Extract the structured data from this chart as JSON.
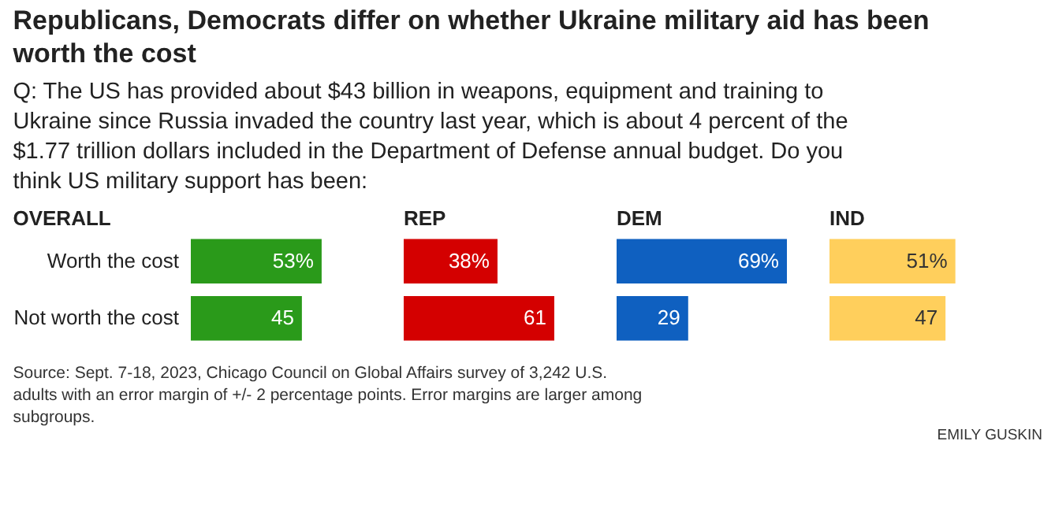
{
  "chart_data": [
    {
      "type": "bar",
      "orientation": "horizontal",
      "title": "OVERALL",
      "categories": [
        "Worth the cost",
        "Not worth the cost"
      ],
      "values": [
        53,
        45
      ],
      "color": "#2a9a1a",
      "value_labels": [
        "53%",
        "45"
      ],
      "tick_labels": "y",
      "annotations": [
        "Republicans, Democrats differ on whether Ukraine military aid has been worth the cost",
        "Q: The US has provided about $43 billion in weapons, equipment and training to Ukraine since Russia invaded the country last year, which is about 4 percent of the $1.77 trillion dollars included in the Department of Defense annual budget. Do you think US military support has been:",
        "Source: Sept. 7-18, 2023, Chicago Council on Global Affairs survey of 3,242 U.S. adults with an error margin of +/- 2 percentage points. Error margins are larger among subgroups.",
        "EMILY GUSKIN"
      ]
    },
    {
      "type": "bar",
      "orientation": "horizontal",
      "title": "REP",
      "categories": [
        null,
        null
      ],
      "values": [
        38,
        61
      ],
      "color": "#d40000",
      "value_labels": [
        "38%",
        "61"
      ],
      "tick_labels": false
    },
    {
      "type": "bar",
      "orientation": "horizontal",
      "title": "DEM",
      "categories": [
        null,
        null
      ],
      "values": [
        69,
        29
      ],
      "color": "#0f60c0",
      "value_labels": [
        "69%",
        "29"
      ],
      "tick_labels": false
    },
    {
      "type": "bar",
      "orientation": "horizontal",
      "title": "IND",
      "categories": [
        null,
        null
      ],
      "values": [
        51,
        47
      ],
      "color": "#ffcf5c",
      "value_labels": [
        "51%",
        "47"
      ],
      "tick_labels": false
    }
  ]
}
